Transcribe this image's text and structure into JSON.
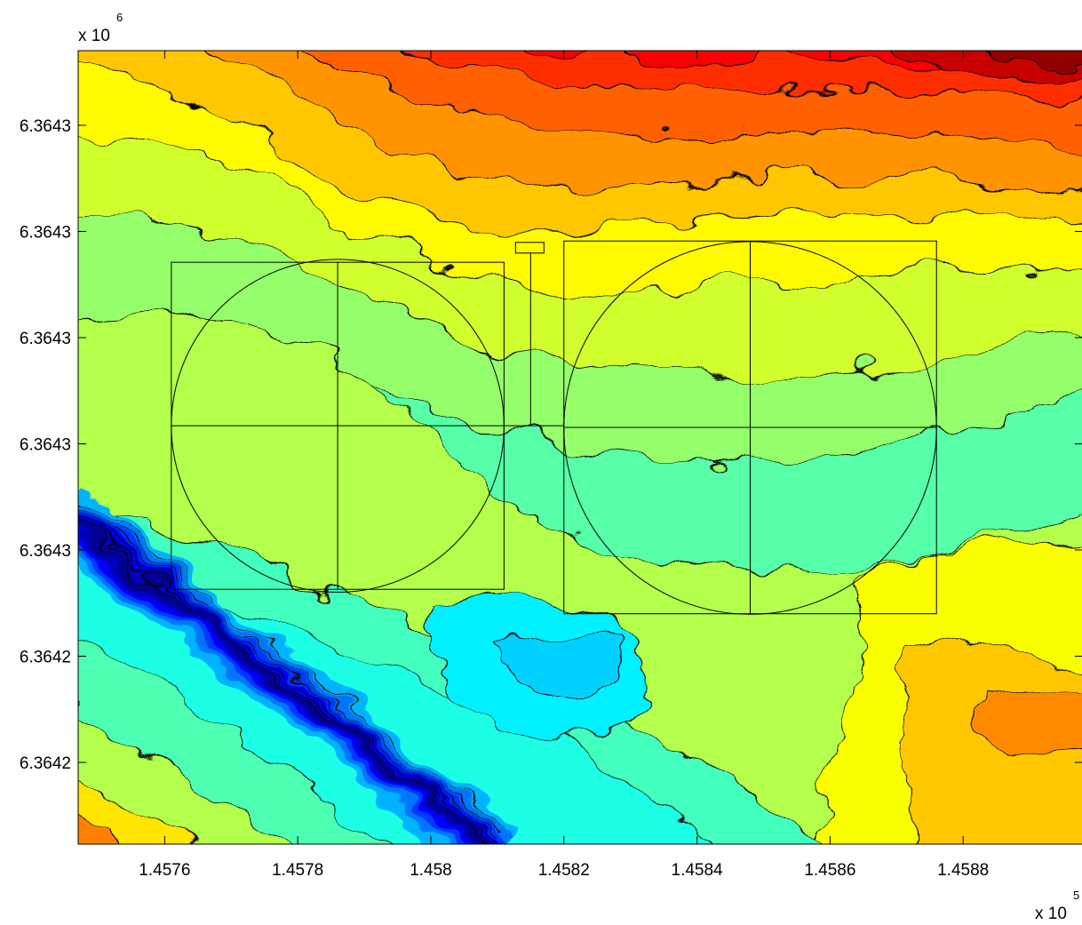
{
  "chart_data": {
    "type": "heatmap",
    "subtype": "filled-contour",
    "colormap": "jet",
    "grid": false,
    "title": "",
    "xlabel": "",
    "ylabel": "",
    "x_multiplier": {
      "text": "x 10",
      "exponent": "5"
    },
    "y_multiplier": {
      "text": "x 10",
      "exponent": "6"
    },
    "xlim": [
      1.45747,
      1.45898
    ],
    "x_ticks": [
      {
        "value": 1.4576,
        "label": "1.4576"
      },
      {
        "value": 1.4578,
        "label": "1.4578"
      },
      {
        "value": 1.458,
        "label": "1.458"
      },
      {
        "value": 1.4582,
        "label": "1.4582"
      },
      {
        "value": 1.4584,
        "label": "1.4584"
      },
      {
        "value": 1.4586,
        "label": "1.4586"
      },
      {
        "value": 1.4588,
        "label": "1.4588"
      }
    ],
    "y_ticks": [
      {
        "index": 0,
        "label": "6.3643"
      },
      {
        "index": 1,
        "label": "6.3643"
      },
      {
        "index": 2,
        "label": "6.3643"
      },
      {
        "index": 3,
        "label": "6.3643"
      },
      {
        "index": 4,
        "label": "6.3643"
      },
      {
        "index": 5,
        "label": "6.3642"
      },
      {
        "index": 6,
        "label": "6.3642"
      }
    ],
    "y_tick_count_span": 7.4,
    "surface": {
      "description_levels": 20,
      "high_region": "top-right",
      "low_region": "diagonal trench lower-left"
    },
    "overlays": [
      {
        "name": "left-square-grid",
        "x_range": [
          1.45761,
          1.45811
        ],
        "y_index_range": [
          1.29,
          4.37
        ],
        "divisions": 2
      },
      {
        "name": "left-circle",
        "center_x": 1.45786,
        "center_y_index": 2.83,
        "radius_x": 0.00025
      },
      {
        "name": "right-square-grid",
        "x_range": [
          1.4582,
          1.45876
        ],
        "y_index_range": [
          1.09,
          4.6
        ],
        "divisions": 2
      },
      {
        "name": "right-circle",
        "center_x": 1.45848,
        "center_y_index": 2.85,
        "radius_x": 0.00028
      },
      {
        "name": "connector-pipe",
        "x": 1.45815,
        "y_index_range": [
          1.17,
          2.83
        ]
      }
    ]
  }
}
